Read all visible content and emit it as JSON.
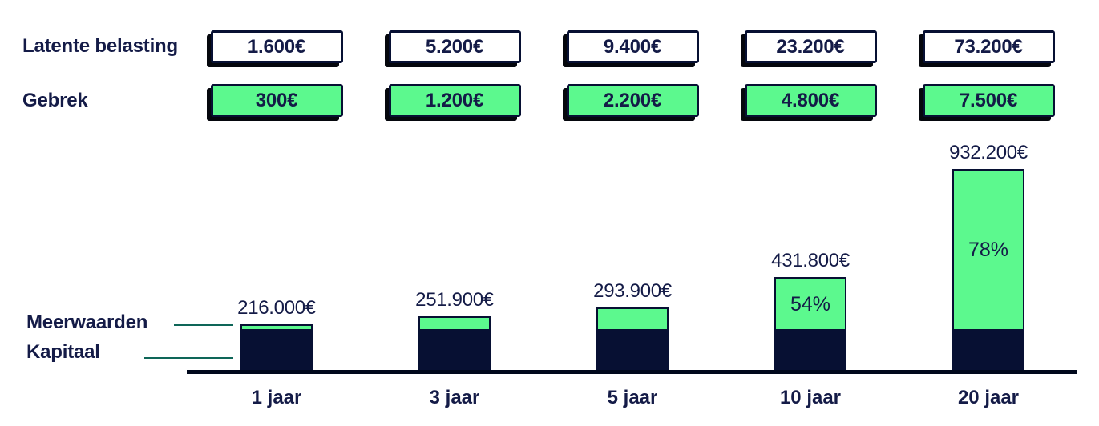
{
  "colors": {
    "navy": "#071033",
    "text_navy": "#141b47",
    "green": "#5cf98e",
    "teal_line": "#0e6658",
    "shadow": "#05070d",
    "axis": "#00081c",
    "white": "#ffffff"
  },
  "legend_rows": [
    {
      "label": "Latente belasting",
      "style": "white",
      "values": [
        "1.600€",
        "5.200€",
        "9.400€",
        "23.200€",
        "73.200€"
      ]
    },
    {
      "label": "Gebrek",
      "style": "green",
      "values": [
        "300€",
        "1.200€",
        "2.200€",
        "4.800€",
        "7.500€"
      ]
    }
  ],
  "series_labels": {
    "meerwaarden": "Meerwaarden",
    "kapitaal": "Kapitaal"
  },
  "chart_data": {
    "type": "bar",
    "subtype": "stacked-bar",
    "categories": [
      "1 jaar",
      "3 jaar",
      "5 jaar",
      "10 jaar",
      "20 jaar"
    ],
    "series": [
      {
        "name": "Kapitaal",
        "color": "#071033",
        "values": [
          200000,
          200000,
          200000,
          200000,
          200000
        ]
      },
      {
        "name": "Meerwaarden",
        "color": "#5cf98e",
        "values": [
          16000,
          51900,
          93900,
          231800,
          732200
        ]
      }
    ],
    "totals": [
      216000,
      251900,
      293900,
      431800,
      932200
    ],
    "total_labels": [
      "216.000€",
      "251.900€",
      "293.900€",
      "431.800€",
      "932.200€"
    ],
    "percent_labels": [
      null,
      null,
      null,
      "54%",
      "78%"
    ],
    "latente_belasting_values": [
      "1.600€",
      "5.200€",
      "9.400€",
      "23.200€",
      "73.200€"
    ],
    "gebrek_values": [
      "300€",
      "1.200€",
      "2.200€",
      "4.800€",
      "7.500€"
    ],
    "xlabel": "",
    "ylabel": "",
    "grid": false,
    "legend_position": "left-of-bars"
  }
}
